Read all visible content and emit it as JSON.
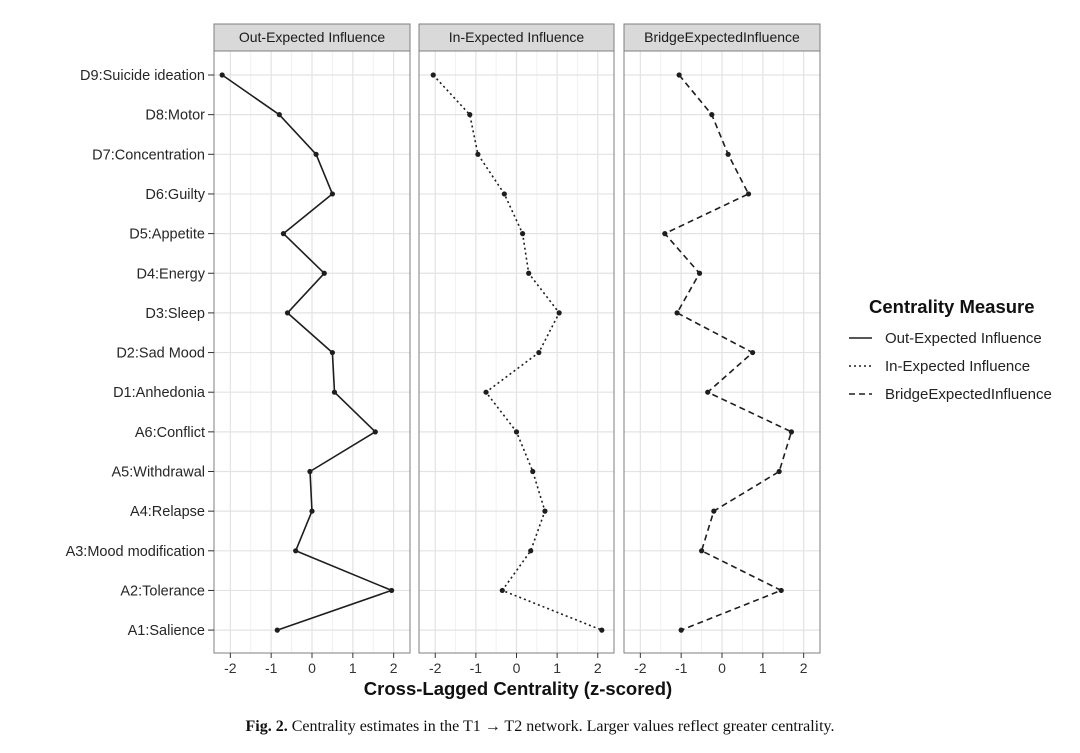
{
  "chart_data": {
    "type": "line",
    "categories": [
      "D9:Suicide ideation",
      "D8:Motor",
      "D7:Concentration",
      "D6:Guilty",
      "D5:Appetite",
      "D4:Energy",
      "D3:Sleep",
      "D2:Sad Mood",
      "D1:Anhedonia",
      "A6:Conflict",
      "A5:Withdrawal",
      "A4:Relapse",
      "A3:Mood modification",
      "A2:Tolerance",
      "A1:Salience"
    ],
    "series": [
      {
        "name": "Out-Expected Influence",
        "line_style": "solid",
        "values": [
          -2.2,
          -0.8,
          0.1,
          0.5,
          -0.7,
          0.3,
          -0.6,
          0.5,
          0.55,
          1.55,
          -0.05,
          0.0,
          -0.4,
          1.95,
          -0.85
        ]
      },
      {
        "name": "In-Expected Influence",
        "line_style": "dotted",
        "values": [
          -2.05,
          -1.15,
          -0.95,
          -0.3,
          0.15,
          0.3,
          1.05,
          0.55,
          -0.75,
          0.0,
          0.4,
          0.7,
          0.35,
          -0.35,
          2.1
        ]
      },
      {
        "name": "BridgeExpectedInfluence",
        "line_style": "dashed",
        "values": [
          -1.05,
          -0.25,
          0.15,
          0.65,
          -1.4,
          -0.55,
          -1.1,
          0.75,
          -0.35,
          1.7,
          1.4,
          -0.2,
          -0.5,
          1.45,
          -1.0
        ]
      }
    ],
    "panels": [
      "Out-Expected Influence",
      "In-Expected Influence",
      "BridgeExpectedInfluence"
    ],
    "xlabel": "Cross-Lagged Centrality (z-scored)",
    "x_ticks": [
      "-2",
      "-1",
      "0",
      "1",
      "2"
    ],
    "xlim": [
      -2.4,
      2.4
    ],
    "grid": true,
    "legend": {
      "title": "Centrality Measure",
      "placement": "right"
    }
  },
  "caption": {
    "label": "Fig. 2.",
    "text": "Centrality estimates in the T1 → T2 network. Larger values reflect greater centrality."
  },
  "colors": {
    "panel_border": "#7f7f7f",
    "strip_fill": "#d9d9d9",
    "grid_major": "#e3e3e3",
    "grid_minor": "#f1f1f1",
    "line": "#1e1e1e"
  }
}
